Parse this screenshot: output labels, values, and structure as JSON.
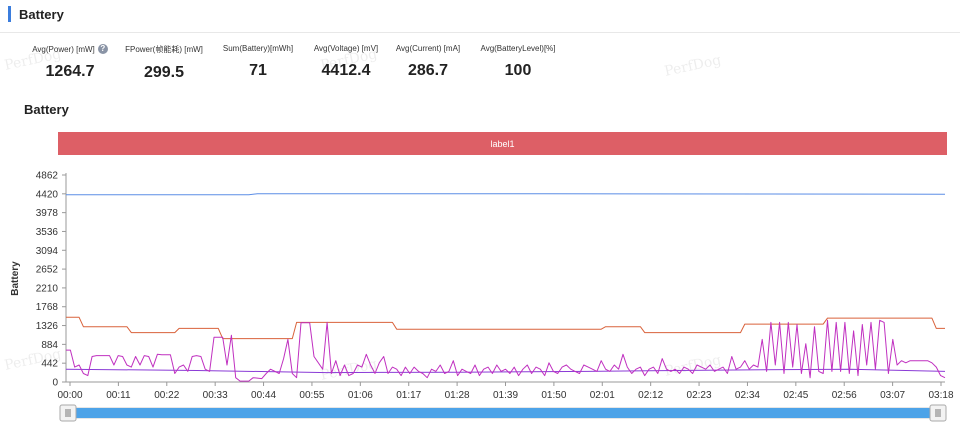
{
  "section": {
    "title": "Battery"
  },
  "stats": [
    {
      "label": "Avg(Power) [mW]",
      "value": "1264.7",
      "help": true
    },
    {
      "label": "FPower(帧能耗) [mW]",
      "value": "299.5"
    },
    {
      "label": "Sum(Battery)[mWh]",
      "value": "71"
    },
    {
      "label": "Avg(Voltage) [mV]",
      "value": "4412.4"
    },
    {
      "label": "Avg(Current) [mA]",
      "value": "286.7"
    },
    {
      "label": "Avg(BatteryLevel)[%]",
      "value": "100"
    }
  ],
  "watermarks": [
    "PerfDog",
    "PerfDog",
    "PerfDog",
    "PerfDog",
    "PerfDog",
    "PerfDog"
  ],
  "chart_data": {
    "type": "line",
    "title": "Battery",
    "ylabel": "Battery",
    "band_label": "label1",
    "band_color": "#dd5f66",
    "ylim": [
      0,
      4862
    ],
    "yticks": [
      0,
      442,
      884,
      1326,
      1768,
      2210,
      2652,
      3094,
      3536,
      3978,
      4420,
      4862
    ],
    "xticks": [
      "00:00",
      "00:11",
      "00:22",
      "00:33",
      "00:44",
      "00:55",
      "01:06",
      "01:17",
      "01:28",
      "01:39",
      "01:50",
      "02:01",
      "02:12",
      "02:23",
      "02:34",
      "02:45",
      "02:56",
      "03:07",
      "03:18"
    ],
    "x_seconds_max": 202,
    "series": [
      {
        "color": "#5b8de6",
        "points": [
          [
            0,
            4400
          ],
          [
            42,
            4400
          ],
          [
            44,
            4420
          ],
          [
            110,
            4420
          ],
          [
            202,
            4410
          ]
        ]
      },
      {
        "color": "#d9623b",
        "points": [
          [
            0,
            1520
          ],
          [
            3,
            1520
          ],
          [
            4,
            1300
          ],
          [
            14,
            1300
          ],
          [
            15,
            1160
          ],
          [
            25,
            1160
          ],
          [
            26,
            1260
          ],
          [
            35,
            1260
          ],
          [
            36,
            1020
          ],
          [
            52,
            1020
          ],
          [
            53,
            1400
          ],
          [
            75,
            1400
          ],
          [
            76,
            1240
          ],
          [
            123,
            1240
          ],
          [
            124,
            1300
          ],
          [
            132,
            1300
          ],
          [
            133,
            1160
          ],
          [
            155,
            1160
          ],
          [
            156,
            1360
          ],
          [
            174,
            1360
          ],
          [
            175,
            1500
          ],
          [
            199,
            1500
          ],
          [
            200,
            1260
          ],
          [
            202,
            1260
          ]
        ]
      },
      {
        "color": "#8a3bd6",
        "points": [
          [
            0,
            300
          ],
          [
            30,
            270
          ],
          [
            60,
            220
          ],
          [
            90,
            230
          ],
          [
            120,
            250
          ],
          [
            150,
            280
          ],
          [
            180,
            300
          ],
          [
            202,
            250
          ]
        ]
      },
      {
        "color": "#c030c0",
        "points": [
          [
            0,
            750
          ],
          [
            1,
            750
          ],
          [
            2,
            350
          ],
          [
            3,
            400
          ],
          [
            4,
            200
          ],
          [
            5,
            150
          ],
          [
            6,
            600
          ],
          [
            7,
            620
          ],
          [
            10,
            620
          ],
          [
            11,
            400
          ],
          [
            12,
            620
          ],
          [
            13,
            600
          ],
          [
            14,
            400
          ],
          [
            15,
            350
          ],
          [
            16,
            600
          ],
          [
            17,
            400
          ],
          [
            18,
            620
          ],
          [
            19,
            600
          ],
          [
            20,
            350
          ],
          [
            21,
            650
          ],
          [
            22,
            640
          ],
          [
            24,
            640
          ],
          [
            25,
            200
          ],
          [
            26,
            350
          ],
          [
            27,
            400
          ],
          [
            28,
            250
          ],
          [
            29,
            600
          ],
          [
            30,
            620
          ],
          [
            31,
            600
          ],
          [
            32,
            300
          ],
          [
            33,
            250
          ],
          [
            34,
            1050
          ],
          [
            35,
            1050
          ],
          [
            36,
            1050
          ],
          [
            37,
            400
          ],
          [
            38,
            1100
          ],
          [
            39,
            100
          ],
          [
            40,
            20
          ],
          [
            42,
            20
          ],
          [
            43,
            100
          ],
          [
            45,
            80
          ],
          [
            46,
            200
          ],
          [
            47,
            300
          ],
          [
            49,
            200
          ],
          [
            50,
            550
          ],
          [
            51,
            1000
          ],
          [
            52,
            200
          ],
          [
            53,
            100
          ],
          [
            54,
            1390
          ],
          [
            56,
            1390
          ],
          [
            57,
            600
          ],
          [
            59,
            300
          ],
          [
            60,
            1400
          ],
          [
            61,
            200
          ],
          [
            62,
            500
          ],
          [
            63,
            150
          ],
          [
            64,
            400
          ],
          [
            65,
            150
          ],
          [
            66,
            200
          ],
          [
            67,
            400
          ],
          [
            68,
            350
          ],
          [
            69,
            650
          ],
          [
            70,
            400
          ],
          [
            71,
            200
          ],
          [
            72,
            450
          ],
          [
            73,
            600
          ],
          [
            74,
            200
          ],
          [
            75,
            350
          ],
          [
            76,
            300
          ],
          [
            77,
            150
          ],
          [
            78,
            350
          ],
          [
            79,
            200
          ],
          [
            80,
            350
          ],
          [
            81,
            250
          ],
          [
            82,
            200
          ],
          [
            83,
            100
          ],
          [
            84,
            300
          ],
          [
            85,
            250
          ],
          [
            86,
            400
          ],
          [
            87,
            200
          ],
          [
            88,
            250
          ],
          [
            89,
            500
          ],
          [
            90,
            150
          ],
          [
            91,
            300
          ],
          [
            92,
            250
          ],
          [
            93,
            200
          ],
          [
            94,
            400
          ],
          [
            95,
            150
          ],
          [
            96,
            300
          ],
          [
            97,
            350
          ],
          [
            98,
            200
          ],
          [
            99,
            400
          ],
          [
            100,
            250
          ],
          [
            101,
            300
          ],
          [
            102,
            200
          ],
          [
            103,
            350
          ],
          [
            104,
            150
          ],
          [
            105,
            300
          ],
          [
            106,
            400
          ],
          [
            107,
            200
          ],
          [
            108,
            350
          ],
          [
            109,
            300
          ],
          [
            110,
            150
          ],
          [
            111,
            450
          ],
          [
            112,
            250
          ],
          [
            113,
            200
          ],
          [
            114,
            350
          ],
          [
            115,
            400
          ],
          [
            116,
            300
          ],
          [
            117,
            250
          ],
          [
            118,
            200
          ],
          [
            119,
            400
          ],
          [
            120,
            350
          ],
          [
            121,
            300
          ],
          [
            122,
            250
          ],
          [
            123,
            500
          ],
          [
            124,
            300
          ],
          [
            125,
            250
          ],
          [
            126,
            400
          ],
          [
            127,
            300
          ],
          [
            128,
            650
          ],
          [
            129,
            350
          ],
          [
            130,
            200
          ],
          [
            131,
            300
          ],
          [
            132,
            350
          ],
          [
            133,
            150
          ],
          [
            134,
            300
          ],
          [
            135,
            350
          ],
          [
            136,
            200
          ],
          [
            137,
            550
          ],
          [
            138,
            300
          ],
          [
            139,
            250
          ],
          [
            140,
            300
          ],
          [
            141,
            200
          ],
          [
            142,
            350
          ],
          [
            143,
            300
          ],
          [
            144,
            200
          ],
          [
            145,
            400
          ],
          [
            146,
            350
          ],
          [
            147,
            300
          ],
          [
            148,
            400
          ],
          [
            149,
            250
          ],
          [
            150,
            300
          ],
          [
            151,
            350
          ],
          [
            152,
            200
          ],
          [
            153,
            600
          ],
          [
            154,
            300
          ],
          [
            155,
            350
          ],
          [
            156,
            500
          ],
          [
            157,
            300
          ],
          [
            158,
            400
          ],
          [
            159,
            350
          ],
          [
            160,
            1000
          ],
          [
            161,
            250
          ],
          [
            162,
            1400
          ],
          [
            163,
            400
          ],
          [
            164,
            1400
          ],
          [
            165,
            200
          ],
          [
            166,
            1400
          ],
          [
            167,
            350
          ],
          [
            168,
            1350
          ],
          [
            169,
            200
          ],
          [
            170,
            900
          ],
          [
            171,
            100
          ],
          [
            172,
            1300
          ],
          [
            173,
            250
          ],
          [
            174,
            200
          ],
          [
            175,
            1450
          ],
          [
            176,
            250
          ],
          [
            177,
            1400
          ],
          [
            178,
            250
          ],
          [
            179,
            1400
          ],
          [
            180,
            200
          ],
          [
            181,
            1200
          ],
          [
            182,
            150
          ],
          [
            183,
            1350
          ],
          [
            184,
            400
          ],
          [
            185,
            1400
          ],
          [
            186,
            300
          ],
          [
            187,
            1450
          ],
          [
            188,
            1400
          ],
          [
            189,
            200
          ],
          [
            190,
            1000
          ],
          [
            191,
            400
          ],
          [
            192,
            500
          ],
          [
            193,
            450
          ],
          [
            194,
            500
          ],
          [
            198,
            500
          ],
          [
            199,
            450
          ],
          [
            200,
            350
          ],
          [
            201,
            150
          ],
          [
            202,
            100
          ]
        ]
      }
    ]
  }
}
